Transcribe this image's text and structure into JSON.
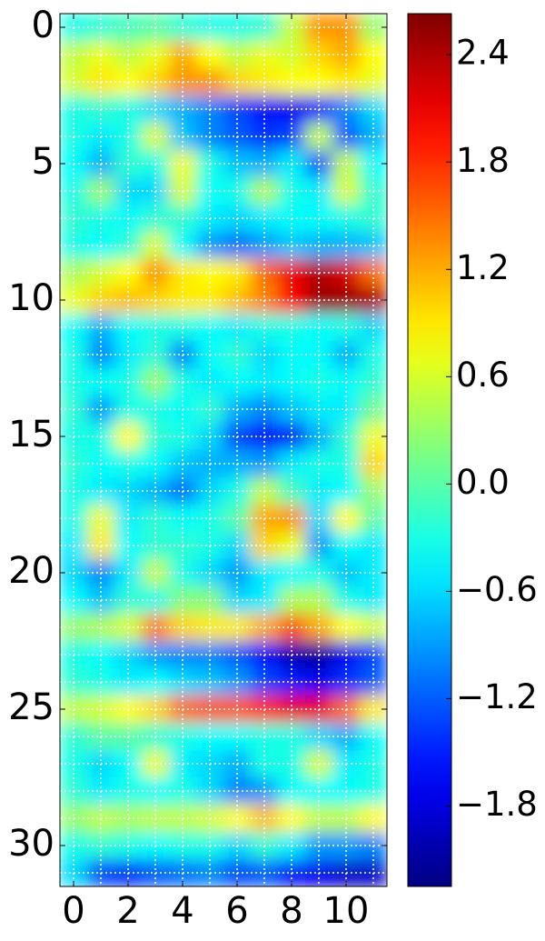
{
  "chart_data": {
    "type": "heatmap",
    "colormap": "jet",
    "interpolation": "bicubic",
    "grid": true,
    "xlim": [
      -0.5,
      11.5
    ],
    "ylim": [
      31.5,
      -0.5
    ],
    "xticks": [
      0,
      2,
      4,
      6,
      8,
      10
    ],
    "yticks": [
      0,
      5,
      10,
      15,
      20,
      25,
      30
    ],
    "clim": [
      -2.25,
      2.63
    ],
    "colorbar_ticks": [
      2.4,
      1.8,
      1.2,
      0.6,
      {
        "value": 0,
        "label": "0.0"
      },
      {
        "value": -0.6,
        "label": "−0.6"
      },
      {
        "value": -1.2,
        "label": "−1.2"
      },
      {
        "value": -1.8,
        "label": "−1.8"
      }
    ],
    "z": [
      [
        -0.3,
        -0.2,
        -0.1,
        0,
        -0.2,
        -0.3,
        -0.3,
        -0.2,
        0.5,
        1.3,
        1.3,
        0.3
      ],
      [
        0.5,
        0.7,
        0.5,
        0.7,
        1.2,
        0.8,
        0.5,
        0.7,
        0.6,
        1.0,
        1.2,
        0.8
      ],
      [
        0.6,
        0.9,
        0.8,
        1.0,
        1.3,
        1.3,
        1.0,
        0.9,
        0.8,
        0.8,
        0.9,
        0.7
      ],
      [
        -0.3,
        -0.2,
        -0.3,
        -0.6,
        -0.8,
        -1.0,
        -1.3,
        -1.6,
        -1.7,
        -1.4,
        -1.0,
        -0.6
      ],
      [
        -0.3,
        -0.5,
        -0.3,
        0.6,
        -0.7,
        -1.0,
        -1.2,
        -1.4,
        -1.3,
        0.5,
        -1.2,
        -0.8
      ],
      [
        -0.4,
        -0.8,
        -0.2,
        -0.3,
        0.7,
        -0.3,
        -0.7,
        -0.8,
        -0.5,
        -1.2,
        0.5,
        -0.4
      ],
      [
        -0.3,
        0.3,
        -0.6,
        -0.6,
        0.6,
        -0.4,
        -0.3,
        0.4,
        -0.3,
        -0.5,
        0.6,
        -0.2
      ],
      [
        -0.2,
        -0.3,
        -0.4,
        -0.2,
        -0.2,
        -0.5,
        -0.6,
        -0.5,
        -0.4,
        -0.4,
        -0.3,
        -0.2
      ],
      [
        -0.3,
        -0.4,
        -0.2,
        0.6,
        -0.4,
        -0.9,
        -1.1,
        -0.9,
        -0.7,
        -0.8,
        -0.8,
        -0.7
      ],
      [
        0.4,
        0.6,
        0.8,
        1.3,
        0.9,
        0.8,
        0.9,
        1.5,
        2.1,
        2.4,
        2.2,
        1.5
      ],
      [
        0.7,
        1.0,
        1.1,
        1.0,
        0.9,
        0.9,
        1.1,
        1.4,
        2.0,
        2.5,
        2.5,
        2.4
      ],
      [
        -0.4,
        -0.8,
        -0.4,
        -0.3,
        -0.3,
        -0.4,
        -0.5,
        -0.3,
        -0.3,
        -0.4,
        -0.3,
        -0.6
      ],
      [
        -0.3,
        -1.0,
        -0.5,
        -0.2,
        -1.0,
        -0.4,
        -0.2,
        -0.6,
        -0.4,
        -0.4,
        -0.8,
        -0.3
      ],
      [
        -0.3,
        -0.4,
        -0.3,
        0.3,
        -0.3,
        -0.5,
        -0.4,
        -0.5,
        -0.4,
        -0.3,
        -0.4,
        -0.2
      ],
      [
        -0.2,
        -0.9,
        -0.3,
        -0.3,
        -0.4,
        -0.2,
        -0.8,
        -1.0,
        -0.7,
        -0.5,
        -0.5,
        0.1
      ],
      [
        -0.3,
        -0.3,
        0.8,
        -0.2,
        -0.3,
        -0.6,
        -1.3,
        -1.6,
        -1.5,
        -0.8,
        -0.2,
        0.7
      ],
      [
        -0.2,
        -0.4,
        -0.3,
        -0.4,
        -0.7,
        -0.8,
        -0.8,
        -0.9,
        -0.5,
        -0.3,
        -0.3,
        1.0
      ],
      [
        -0.3,
        -0.5,
        -0.6,
        -0.8,
        -1.1,
        -0.6,
        -0.3,
        0.5,
        -0.1,
        -0.5,
        -0.4,
        0.3
      ],
      [
        -0.3,
        0.7,
        -0.5,
        -0.2,
        -0.4,
        -0.3,
        0.0,
        1.2,
        1.3,
        -0.6,
        0.8,
        0.0
      ],
      [
        -0.5,
        0.9,
        -0.4,
        -0.2,
        -0.2,
        -0.3,
        -0.6,
        1.0,
        0.7,
        -0.9,
        -0.4,
        -0.5
      ],
      [
        -0.6,
        -1.0,
        -0.5,
        0.5,
        -0.3,
        -0.6,
        -0.9,
        -0.5,
        -0.4,
        -0.3,
        -0.7,
        -0.5
      ],
      [
        -0.4,
        -0.7,
        -0.2,
        -0.3,
        0.2,
        0.2,
        -0.6,
        -0.5,
        0.4,
        0.4,
        -0.3,
        -0.5
      ],
      [
        0.3,
        0.4,
        0.6,
        1.4,
        1.0,
        0.9,
        0.9,
        1.2,
        1.6,
        1.2,
        0.8,
        0.6
      ],
      [
        -0.3,
        -0.4,
        -0.6,
        -0.9,
        -1.0,
        -1.0,
        -1.2,
        -1.6,
        -2.0,
        -2.1,
        -1.7,
        -1.3
      ],
      [
        -0.2,
        -0.3,
        -0.5,
        -0.4,
        -0.6,
        -0.7,
        -0.9,
        -1.3,
        -1.5,
        -1.7,
        -1.4,
        -1.2
      ],
      [
        0.5,
        0.6,
        0.8,
        1.0,
        1.5,
        1.6,
        1.6,
        1.8,
        2.1,
        2.1,
        1.5,
        0.9
      ],
      [
        -0.2,
        0.0,
        0.0,
        -0.2,
        -0.3,
        -0.4,
        -0.4,
        -0.3,
        -0.3,
        -0.6,
        -0.8,
        -0.4
      ],
      [
        -0.3,
        -0.6,
        -0.4,
        0.7,
        -0.5,
        -0.6,
        -0.8,
        -0.3,
        -0.3,
        0.6,
        -0.5,
        -0.3
      ],
      [
        -0.2,
        -0.5,
        -0.3,
        -0.4,
        -0.3,
        -0.6,
        -1.0,
        -0.9,
        -0.4,
        -0.4,
        -0.4,
        -0.3
      ],
      [
        0.3,
        0.5,
        0.4,
        0.5,
        0.5,
        0.6,
        0.8,
        1.1,
        0.8,
        0.5,
        0.5,
        0.8
      ],
      [
        -0.3,
        -0.2,
        -0.3,
        -0.4,
        -0.3,
        -0.3,
        -0.6,
        -0.2,
        -0.5,
        -0.9,
        -0.9,
        -1.0
      ],
      [
        -0.6,
        -1.3,
        -1.4,
        -1.2,
        -1.1,
        -1.0,
        -1.3,
        -1.2,
        -1.6,
        -1.7,
        -1.9,
        -1.9
      ]
    ]
  }
}
